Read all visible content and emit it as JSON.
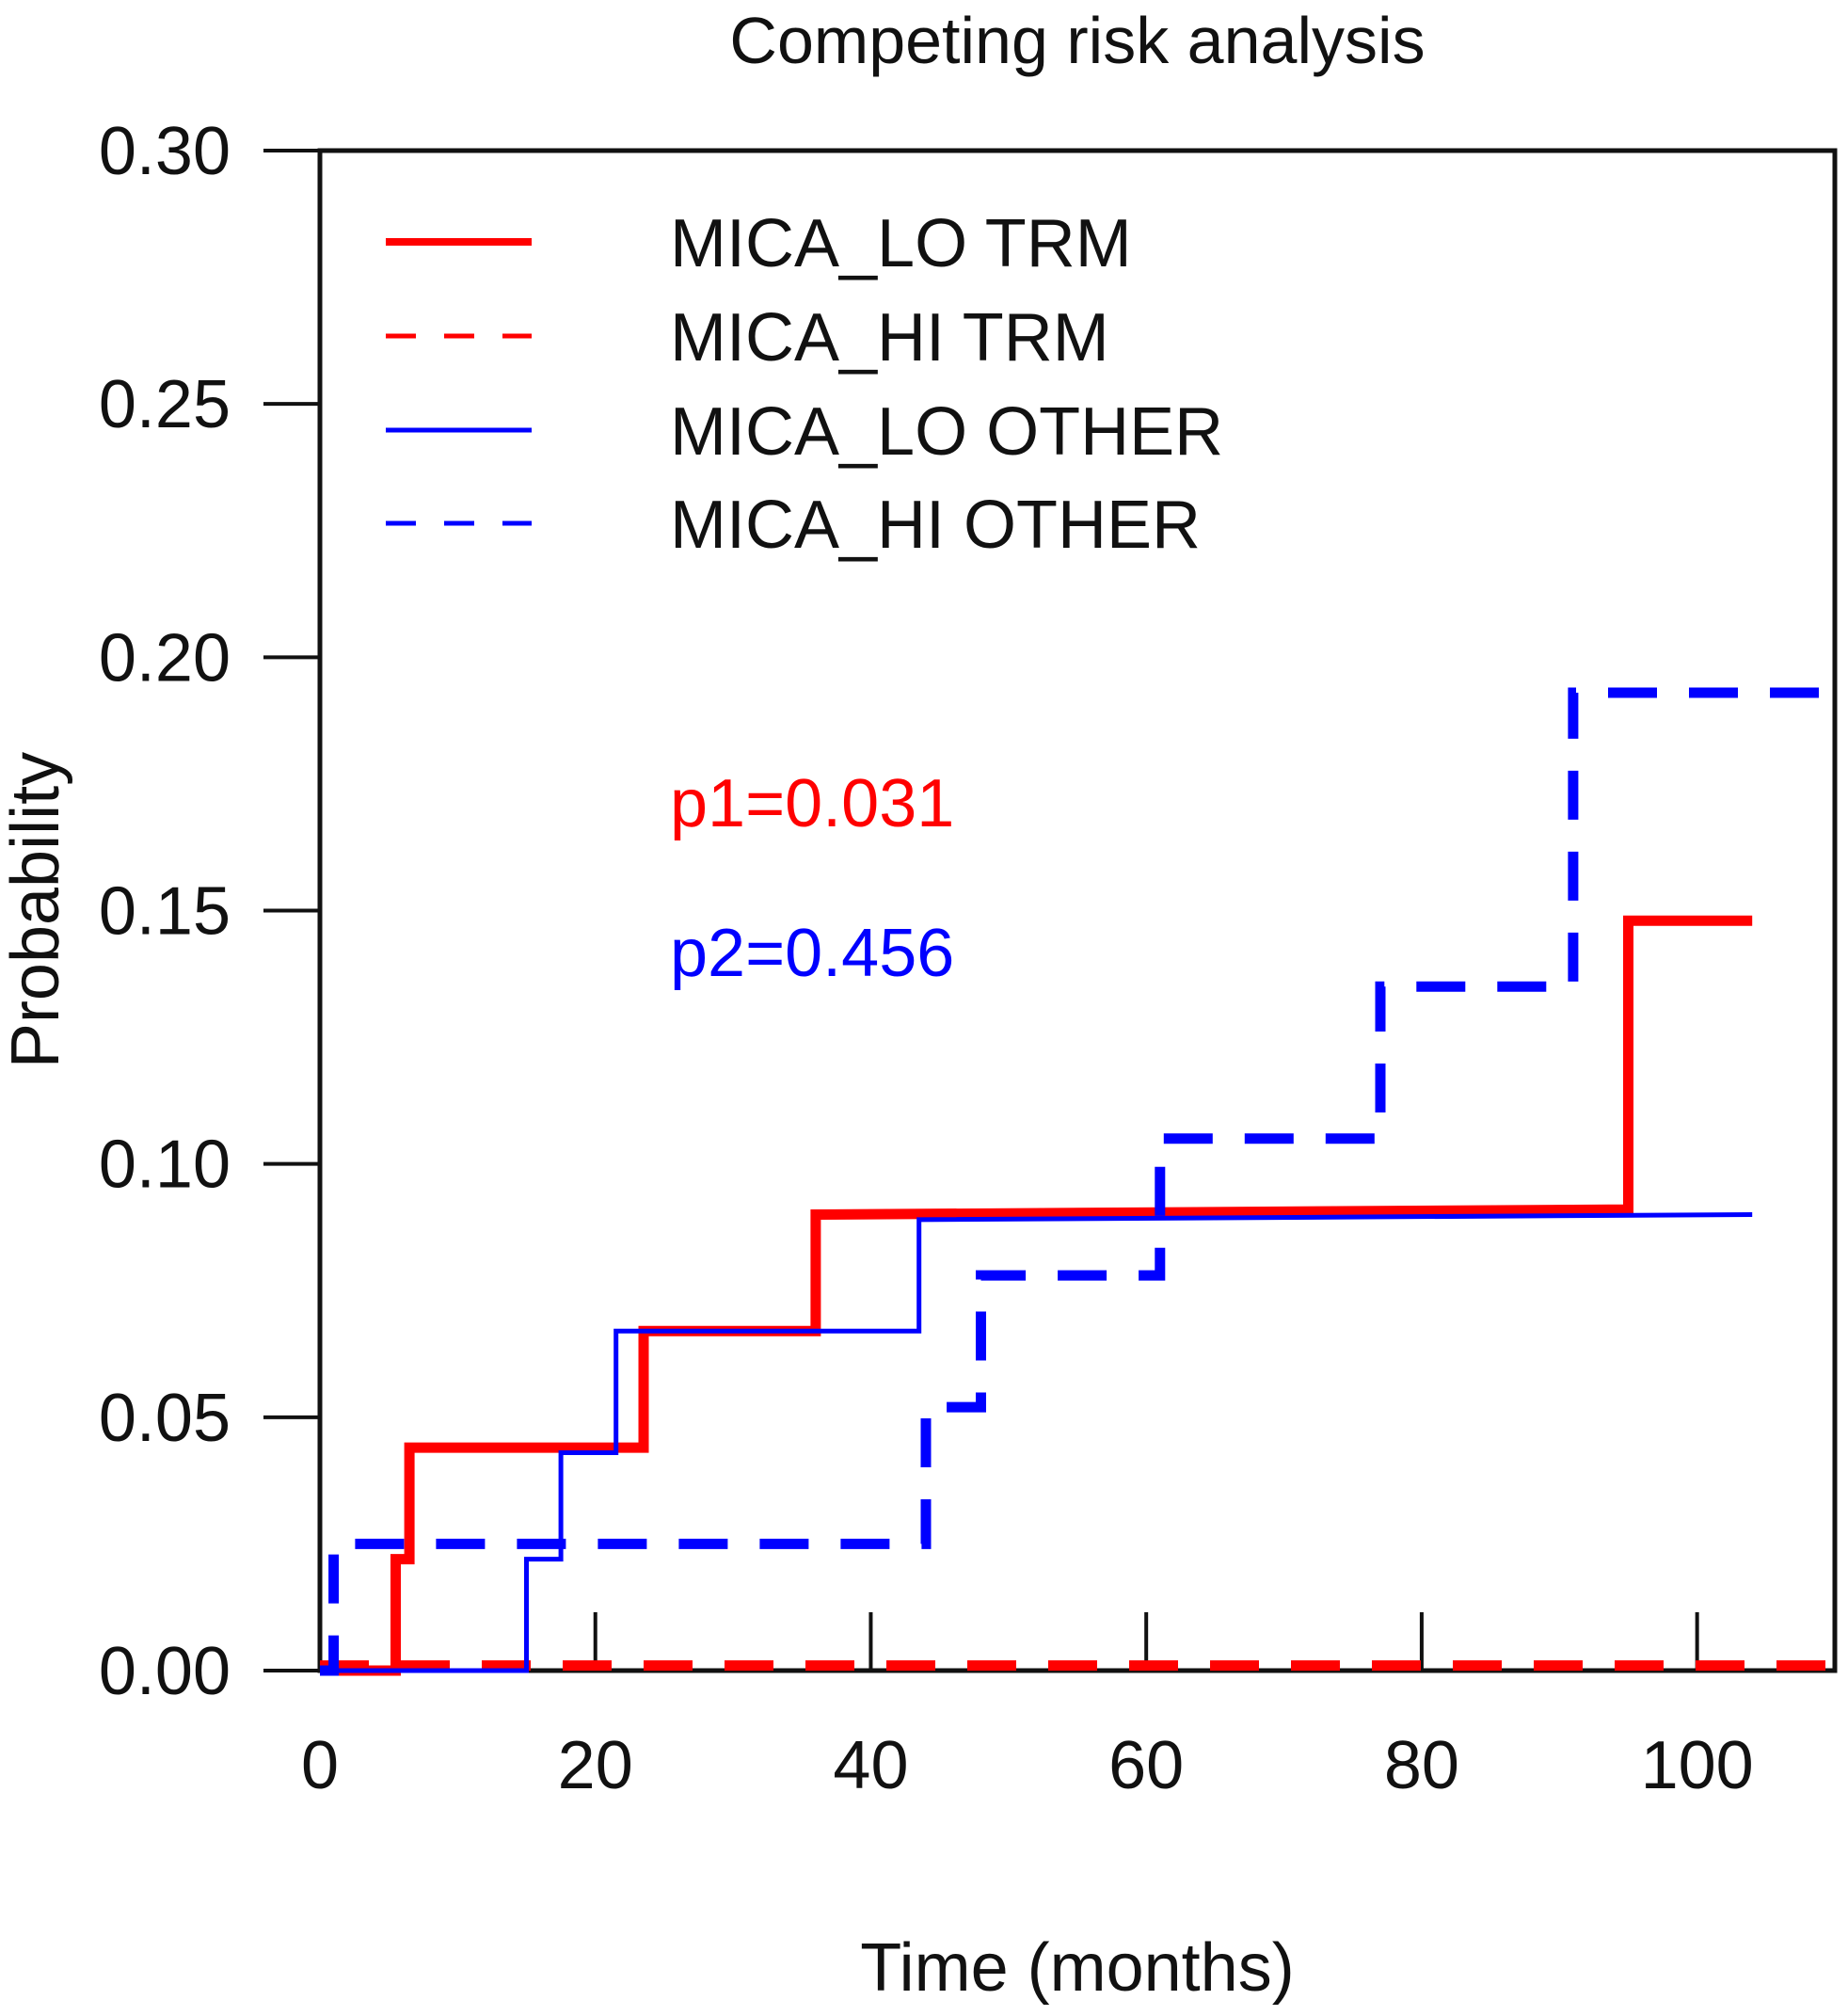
{
  "chart_data": {
    "type": "line",
    "step": true,
    "title": "Competing risk analysis",
    "xlabel": "Time (months)",
    "ylabel": "Probability",
    "xlim": [
      0,
      110
    ],
    "ylim": [
      0,
      0.3
    ],
    "x_ticks": [
      0,
      20,
      40,
      60,
      80,
      100
    ],
    "x_tick_labels": [
      "0",
      "20",
      "40",
      "60",
      "80",
      "100"
    ],
    "y_ticks": [
      0,
      0.05,
      0.1,
      0.15,
      0.2,
      0.25,
      0.3
    ],
    "y_tick_labels": [
      "0.00",
      "0.05",
      "0.10",
      "0.15",
      "0.20",
      "0.25",
      "0.30"
    ],
    "legend_position": "top-left",
    "series": [
      {
        "name": "MICA_LO TRM",
        "color": "#ff0000",
        "style": "solid",
        "weight": "thick",
        "points": [
          [
            0,
            0
          ],
          [
            5.5,
            0
          ],
          [
            5.5,
            0.022
          ],
          [
            6.5,
            0.022
          ],
          [
            6.5,
            0.044
          ],
          [
            23.5,
            0.044
          ],
          [
            23.5,
            0.067
          ],
          [
            36,
            0.067
          ],
          [
            36,
            0.09
          ],
          [
            95,
            0.091
          ],
          [
            95,
            0.148
          ],
          [
            104,
            0.148
          ]
        ]
      },
      {
        "name": "MICA_HI TRM",
        "color": "#ff0000",
        "style": "dashed",
        "weight": "thick",
        "points": [
          [
            0,
            0.001
          ],
          [
            110,
            0.001
          ]
        ]
      },
      {
        "name": "MICA_LO OTHER",
        "color": "#0000ff",
        "style": "solid",
        "weight": "thin",
        "points": [
          [
            0,
            0
          ],
          [
            15,
            0
          ],
          [
            15,
            0.022
          ],
          [
            17.5,
            0.022
          ],
          [
            17.5,
            0.043
          ],
          [
            21.5,
            0.043
          ],
          [
            21.5,
            0.067
          ],
          [
            43.5,
            0.067
          ],
          [
            43.5,
            0.089
          ],
          [
            104,
            0.09
          ]
        ]
      },
      {
        "name": "MICA_HI OTHER",
        "color": "#0000ff",
        "style": "dashed",
        "weight": "thick",
        "points": [
          [
            0,
            0
          ],
          [
            1,
            0
          ],
          [
            1,
            0.025
          ],
          [
            44,
            0.025
          ],
          [
            44,
            0.052
          ],
          [
            48,
            0.052
          ],
          [
            48,
            0.078
          ],
          [
            61,
            0.078
          ],
          [
            61,
            0.105
          ],
          [
            77,
            0.105
          ],
          [
            77,
            0.135
          ],
          [
            91,
            0.135
          ],
          [
            91,
            0.193
          ],
          [
            110,
            0.193
          ]
        ]
      }
    ],
    "annotations": [
      {
        "text": "p1=0.031",
        "color": "#ff0000"
      },
      {
        "text": "p2=0.456",
        "color": "#0000ff"
      }
    ]
  }
}
